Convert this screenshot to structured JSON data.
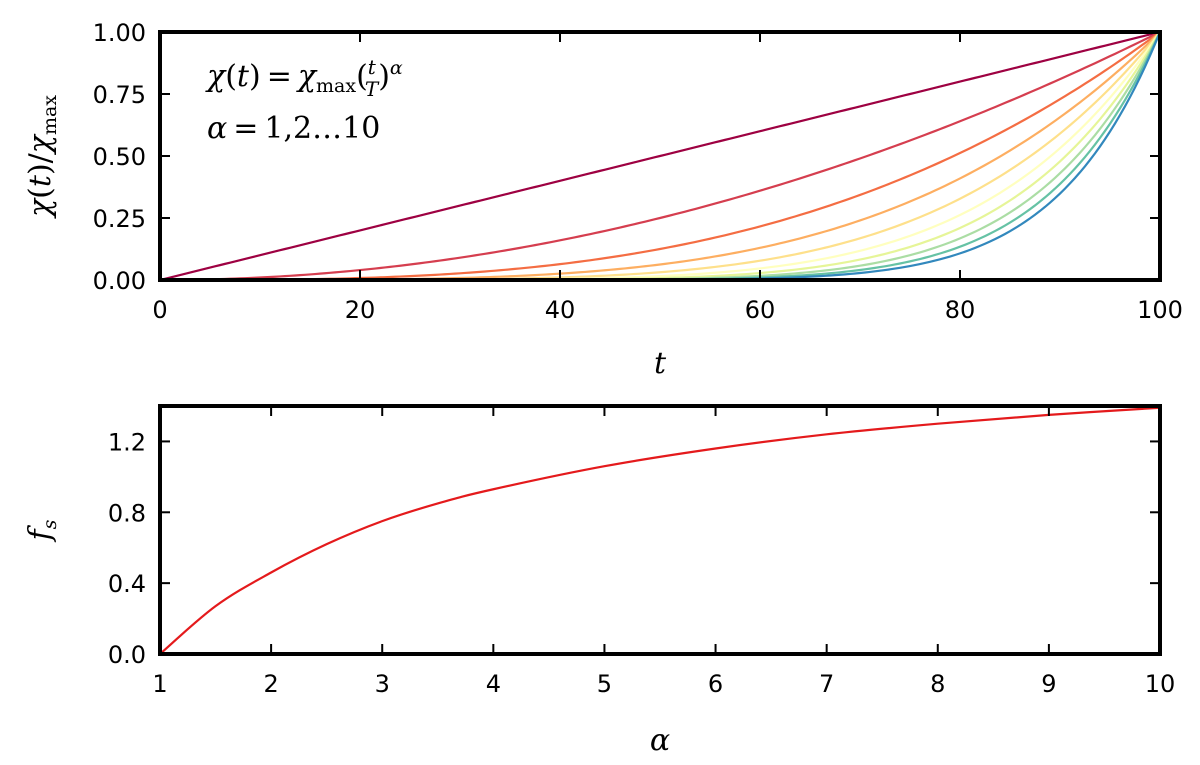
{
  "chart_data": [
    {
      "type": "line",
      "xlabel": "t",
      "ylabel": "χ(t)/χmax",
      "xlim": [
        0,
        100
      ],
      "ylim": [
        0,
        1
      ],
      "xticks": [
        "0",
        "20",
        "40",
        "60",
        "80",
        "100"
      ],
      "yticks": [
        "0.00",
        "0.25",
        "0.50",
        "0.75",
        "1.00"
      ],
      "annotations": [
        "χ(t) = χmax(t/T)^α",
        "α = 1,2…10"
      ],
      "function": "y = (x/100)^alpha",
      "grid": false,
      "series": [
        {
          "alpha": 1,
          "color": "#9e0142",
          "x": [
            0,
            10,
            20,
            30,
            40,
            50,
            60,
            70,
            80,
            90,
            100
          ],
          "values": [
            0,
            0.1,
            0.2,
            0.3,
            0.4,
            0.5,
            0.6,
            0.7,
            0.8,
            0.9,
            1.0
          ]
        },
        {
          "alpha": 2,
          "color": "#d53e4f",
          "x": [
            0,
            10,
            20,
            30,
            40,
            50,
            60,
            70,
            80,
            90,
            100
          ],
          "values": [
            0,
            0.01,
            0.04,
            0.09,
            0.16,
            0.25,
            0.36,
            0.49,
            0.64,
            0.81,
            1.0
          ]
        },
        {
          "alpha": 3,
          "color": "#f46d43",
          "x": [
            0,
            10,
            20,
            30,
            40,
            50,
            60,
            70,
            80,
            90,
            100
          ],
          "values": [
            0,
            0.001,
            0.008,
            0.027,
            0.064,
            0.125,
            0.216,
            0.343,
            0.512,
            0.729,
            1.0
          ]
        },
        {
          "alpha": 4,
          "color": "#fdae61",
          "x": [
            0,
            10,
            20,
            30,
            40,
            50,
            60,
            70,
            80,
            90,
            100
          ],
          "values": [
            0,
            0.0001,
            0.0016,
            0.0081,
            0.0256,
            0.0625,
            0.1296,
            0.2401,
            0.4096,
            0.6561,
            1.0
          ]
        },
        {
          "alpha": 5,
          "color": "#fee08b",
          "x": [
            0,
            10,
            20,
            30,
            40,
            50,
            60,
            70,
            80,
            90,
            100
          ],
          "values": [
            0,
            0,
            0.0003,
            0.0024,
            0.0102,
            0.0313,
            0.0778,
            0.1681,
            0.3277,
            0.5905,
            1.0
          ]
        },
        {
          "alpha": 6,
          "color": "#ffffbf",
          "x": [
            0,
            10,
            20,
            30,
            40,
            50,
            60,
            70,
            80,
            90,
            100
          ],
          "values": [
            0,
            0,
            0.0001,
            0.0007,
            0.0041,
            0.0156,
            0.0467,
            0.1176,
            0.2621,
            0.5314,
            1.0
          ]
        },
        {
          "alpha": 7,
          "color": "#e6f598",
          "x": [
            0,
            10,
            20,
            30,
            40,
            50,
            60,
            70,
            80,
            90,
            100
          ],
          "values": [
            0,
            0,
            0,
            0.0002,
            0.0016,
            0.0078,
            0.028,
            0.0824,
            0.2097,
            0.4783,
            1.0
          ]
        },
        {
          "alpha": 8,
          "color": "#abdda4",
          "x": [
            0,
            10,
            20,
            30,
            40,
            50,
            60,
            70,
            80,
            90,
            100
          ],
          "values": [
            0,
            0,
            0,
            0.0001,
            0.0007,
            0.0039,
            0.0168,
            0.0576,
            0.1678,
            0.4305,
            1.0
          ]
        },
        {
          "alpha": 9,
          "color": "#66c2a5",
          "x": [
            0,
            10,
            20,
            30,
            40,
            50,
            60,
            70,
            80,
            90,
            100
          ],
          "values": [
            0,
            0,
            0,
            0,
            0.0003,
            0.002,
            0.0101,
            0.0404,
            0.1342,
            0.3874,
            1.0
          ]
        },
        {
          "alpha": 10,
          "color": "#3288bd",
          "x": [
            0,
            10,
            20,
            30,
            40,
            50,
            60,
            70,
            80,
            90,
            100
          ],
          "values": [
            0,
            0,
            0,
            0,
            0.0001,
            0.001,
            0.006,
            0.0282,
            0.1074,
            0.3487,
            1.0
          ]
        }
      ]
    },
    {
      "type": "line",
      "xlabel": "α",
      "ylabel": "fs",
      "xlim": [
        1,
        10
      ],
      "ylim": [
        0,
        1.4
      ],
      "xticks": [
        "1",
        "2",
        "3",
        "4",
        "5",
        "6",
        "7",
        "8",
        "9",
        "10"
      ],
      "yticks": [
        "0.0",
        "0.4",
        "0.8",
        "1.2"
      ],
      "grid": false,
      "series": [
        {
          "color": "#e41a1c",
          "x": [
            1,
            1.5,
            2,
            2.5,
            3,
            3.5,
            4,
            5,
            6,
            7,
            8,
            9,
            10
          ],
          "values": [
            0,
            0.27,
            0.46,
            0.62,
            0.75,
            0.85,
            0.93,
            1.06,
            1.16,
            1.24,
            1.3,
            1.35,
            1.39
          ]
        }
      ]
    }
  ]
}
